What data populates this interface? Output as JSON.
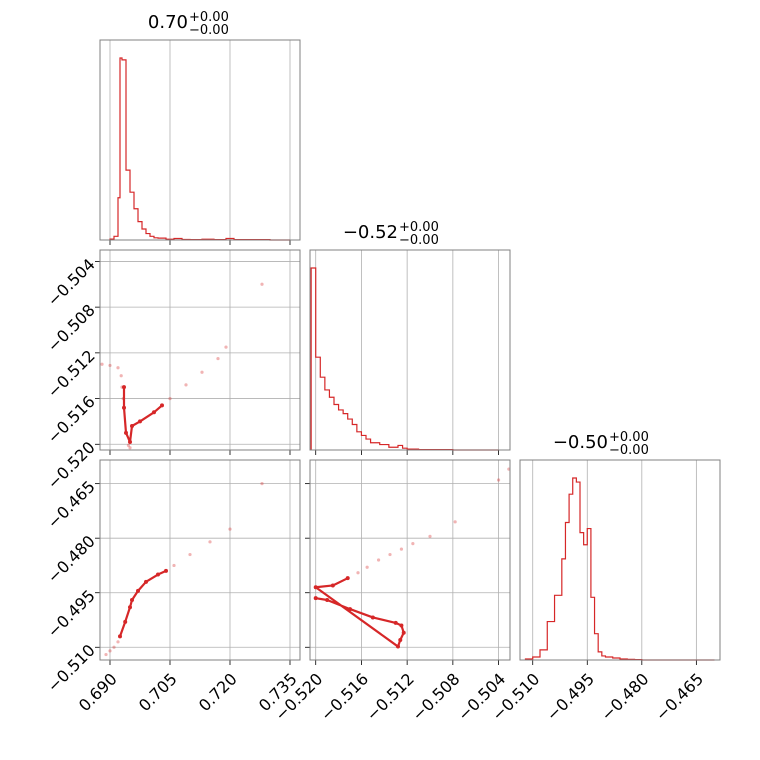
{
  "chart_data": {
    "type": "corner",
    "color": "#d62728",
    "parameters": [
      {
        "title_value": "0.70",
        "title_upper": "+0.00",
        "title_lower": "−0.00",
        "range": [
          0.6875,
          0.7375
        ],
        "ticks": [
          0.69,
          0.705,
          0.72,
          0.735
        ],
        "tick_labels": [
          "0.690",
          "0.705",
          "0.720",
          "0.735"
        ]
      },
      {
        "title_value": "−0.52",
        "title_upper": "+0.00",
        "title_lower": "−0.00",
        "range": [
          -0.5205,
          -0.503
        ],
        "ticks": [
          -0.52,
          -0.516,
          -0.512,
          -0.508,
          -0.504
        ],
        "tick_labels": [
          "−0.520",
          "−0.516",
          "−0.512",
          "−0.508",
          "−0.504"
        ]
      },
      {
        "title_value": "−0.50",
        "title_upper": "+0.00",
        "title_lower": "−0.00",
        "range": [
          -0.5135,
          -0.4585
        ],
        "ticks": [
          -0.51,
          -0.495,
          -0.48,
          -0.465
        ],
        "tick_labels": [
          "−0.510",
          "−0.495",
          "−0.480",
          "−0.465"
        ]
      }
    ],
    "histograms": [
      {
        "param": 0,
        "bin_edges": [
          0.69,
          0.691,
          0.692,
          0.6925,
          0.693,
          0.694,
          0.695,
          0.696,
          0.697,
          0.698,
          0.699,
          0.7,
          0.701,
          0.702,
          0.704,
          0.706,
          0.708,
          0.71,
          0.713,
          0.716,
          0.719,
          0.721,
          0.724,
          0.73,
          0.735
        ],
        "counts": [
          0.005,
          0.02,
          0.23,
          0.99,
          0.98,
          0.38,
          0.26,
          0.17,
          0.1,
          0.06,
          0.035,
          0.02,
          0.012,
          0.01,
          0.004,
          0.008,
          0.003,
          0.002,
          0.004,
          0.002,
          0.008,
          0.002,
          0.002,
          0.0
        ]
      },
      {
        "param": 1,
        "bin_edges": [
          -0.5204,
          -0.52,
          -0.5196,
          -0.5192,
          -0.5188,
          -0.5184,
          -0.518,
          -0.5176,
          -0.5172,
          -0.5168,
          -0.5164,
          -0.516,
          -0.5156,
          -0.5152,
          -0.5148,
          -0.5144,
          -0.514,
          -0.5136,
          -0.5132,
          -0.5128,
          -0.5124,
          -0.512,
          -0.511,
          -0.508,
          -0.504
        ],
        "counts": [
          1.0,
          0.51,
          0.4,
          0.33,
          0.29,
          0.25,
          0.22,
          0.2,
          0.17,
          0.14,
          0.1,
          0.08,
          0.06,
          0.04,
          0.04,
          0.03,
          0.03,
          0.015,
          0.015,
          0.025,
          0.01,
          0.005,
          0.002,
          0.0
        ]
      },
      {
        "param": 2,
        "bin_edges": [
          -0.512,
          -0.51,
          -0.508,
          -0.506,
          -0.504,
          -0.502,
          -0.501,
          -0.5,
          -0.499,
          -0.498,
          -0.497,
          -0.496,
          -0.495,
          -0.494,
          -0.493,
          -0.492,
          -0.491,
          -0.49,
          -0.488,
          -0.486,
          -0.484,
          -0.482,
          -0.48,
          -0.46
        ],
        "counts": [
          0.005,
          0.015,
          0.05,
          0.19,
          0.32,
          0.5,
          0.68,
          0.82,
          0.9,
          0.88,
          0.63,
          0.57,
          0.65,
          0.31,
          0.13,
          0.04,
          0.02,
          0.015,
          0.01,
          0.005,
          0.003,
          0.002,
          0.0
        ]
      }
    ],
    "scatter_panels": [
      {
        "x_param": 0,
        "y_param": 1,
        "trail": [
          [
            0.6935,
            -0.515
          ],
          [
            0.6935,
            -0.5168
          ],
          [
            0.694,
            -0.519
          ],
          [
            0.695,
            -0.5198
          ],
          [
            0.6955,
            -0.5184
          ],
          [
            0.6975,
            -0.518
          ],
          [
            0.701,
            -0.5172
          ],
          [
            0.703,
            -0.5166
          ]
        ],
        "points": [
          [
            0.688,
            -0.513
          ],
          [
            0.69,
            -0.5131
          ],
          [
            0.692,
            -0.5133
          ],
          [
            0.6928,
            -0.514
          ],
          [
            0.693,
            -0.515
          ],
          [
            0.6933,
            -0.516
          ],
          [
            0.6946,
            -0.5201
          ],
          [
            0.695,
            -0.5203
          ],
          [
            0.705,
            -0.516
          ],
          [
            0.709,
            -0.5148
          ],
          [
            0.713,
            -0.5137
          ],
          [
            0.717,
            -0.5125
          ],
          [
            0.719,
            -0.5115
          ],
          [
            0.728,
            -0.506
          ]
        ]
      },
      {
        "x_param": 0,
        "y_param": 2,
        "trail": [
          [
            0.6925,
            -0.507
          ],
          [
            0.6938,
            -0.503
          ],
          [
            0.695,
            -0.499
          ],
          [
            0.6955,
            -0.497
          ],
          [
            0.697,
            -0.4945
          ],
          [
            0.699,
            -0.492
          ],
          [
            0.702,
            -0.49
          ],
          [
            0.704,
            -0.489
          ]
        ],
        "points": [
          [
            0.689,
            -0.512
          ],
          [
            0.69,
            -0.511
          ],
          [
            0.691,
            -0.51
          ],
          [
            0.692,
            -0.5085
          ],
          [
            0.706,
            -0.4875
          ],
          [
            0.71,
            -0.4845
          ],
          [
            0.715,
            -0.481
          ],
          [
            0.72,
            -0.4775
          ],
          [
            0.728,
            -0.465
          ]
        ]
      },
      {
        "x_param": 1,
        "y_param": 2,
        "trail": [
          [
            -0.52,
            -0.4965
          ],
          [
            -0.519,
            -0.497
          ],
          [
            -0.517,
            -0.4995
          ],
          [
            -0.515,
            -0.5018
          ],
          [
            -0.513,
            -0.5033
          ],
          [
            -0.5125,
            -0.504
          ],
          [
            -0.5123,
            -0.506
          ],
          [
            -0.5126,
            -0.508
          ],
          [
            -0.5128,
            -0.5098
          ],
          [
            -0.52,
            -0.4935
          ],
          [
            -0.5185,
            -0.493
          ],
          [
            -0.5172,
            -0.491
          ]
        ],
        "points": [
          [
            -0.5163,
            -0.4895
          ],
          [
            -0.5155,
            -0.488
          ],
          [
            -0.5145,
            -0.486
          ],
          [
            -0.5135,
            -0.4845
          ],
          [
            -0.5125,
            -0.483
          ],
          [
            -0.5115,
            -0.4815
          ],
          [
            -0.51,
            -0.4795
          ],
          [
            -0.5078,
            -0.4755
          ],
          [
            -0.504,
            -0.464
          ],
          [
            -0.5031,
            -0.461
          ]
        ]
      }
    ],
    "grid": true
  }
}
